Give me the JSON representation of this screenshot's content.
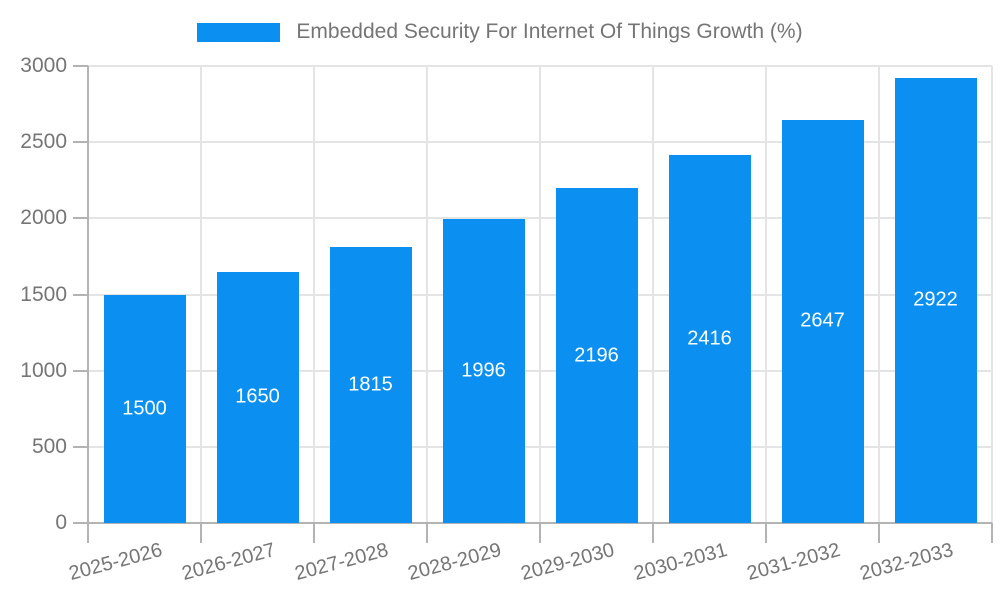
{
  "chart_data": {
    "type": "bar",
    "title": "Embedded Security For Internet Of Things Growth (%)",
    "categories": [
      "2025-2026",
      "2026-2027",
      "2027-2028",
      "2028-2029",
      "2029-2030",
      "2030-2031",
      "2031-2032",
      "2032-2033"
    ],
    "values": [
      1500,
      1650,
      1815,
      1996,
      2196,
      2416,
      2647,
      2922
    ],
    "series": [
      {
        "name": "Embedded Security For Internet Of Things Growth (%)",
        "values": [
          1500,
          1650,
          1815,
          1996,
          2196,
          2416,
          2647,
          2922
        ]
      }
    ],
    "xlabel": "",
    "ylabel": "",
    "ylim": [
      0,
      3000
    ],
    "ytick_step": 500,
    "grid": true,
    "legend_position": "top-center",
    "x_tick_rotation_deg": -15,
    "colors": {
      "bar": "#0b90f2",
      "value_label": "#ffffff",
      "axis_text": "#757575",
      "grid_line": "#e4e4e4",
      "axis_line": "#b3b3b3",
      "background": "#ffffff"
    }
  }
}
